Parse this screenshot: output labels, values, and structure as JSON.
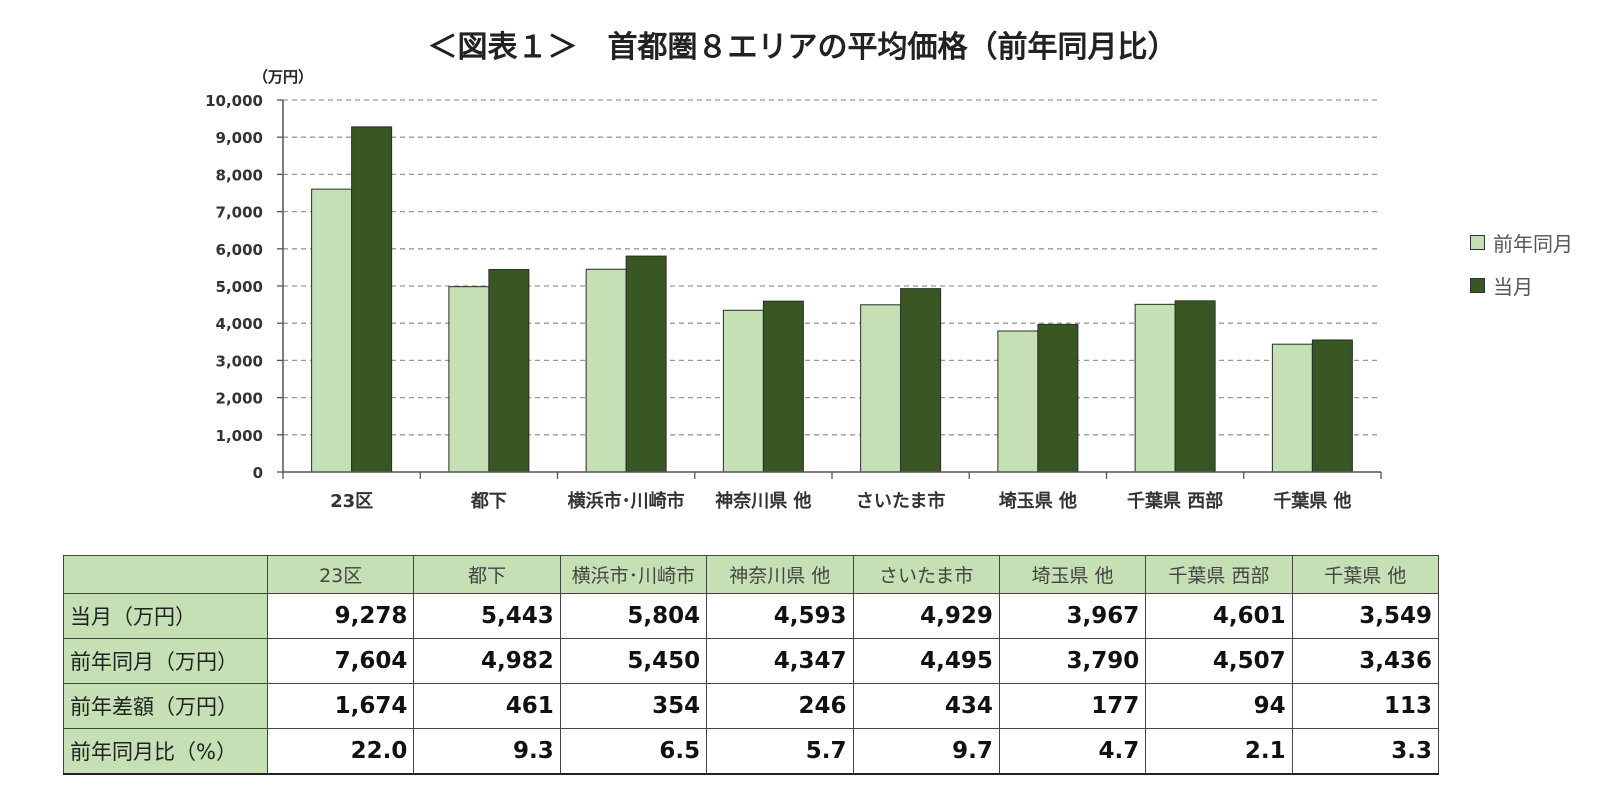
{
  "chart_data": {
    "type": "bar",
    "title": "＜図表１＞　首都圏８エリアの平均価格（前年同月比）",
    "y_unit": "（万円）",
    "ylim": [
      0,
      10000
    ],
    "y_ticks": [
      "10,000",
      "9,000",
      "8,000",
      "7,000",
      "6,000",
      "5,000",
      "4,000",
      "3,000",
      "2,000",
      "1,000",
      "0"
    ],
    "grid": true,
    "legend_position": "right",
    "categories": [
      "23区",
      "都下",
      "横浜市･川崎市",
      "神奈川県 他",
      "さいたま市",
      "埼玉県 他",
      "千葉県 西部",
      "千葉県 他"
    ],
    "series": [
      {
        "name": "前年同月",
        "color": "#c5e0b4",
        "values": [
          7604,
          4982,
          5450,
          4347,
          4495,
          3790,
          4507,
          3436
        ]
      },
      {
        "name": "当月",
        "color": "#385723",
        "values": [
          9278,
          5443,
          5804,
          4593,
          4929,
          3967,
          4601,
          3549
        ]
      }
    ]
  },
  "table": {
    "header": [
      "",
      "23区",
      "都下",
      "横浜市･川崎市",
      "神奈川県 他",
      "さいたま市",
      "埼玉県 他",
      "千葉県 西部",
      "千葉県 他"
    ],
    "rows": [
      {
        "label": "当月（万円）",
        "cells": [
          "9,278",
          "5,443",
          "5,804",
          "4,593",
          "4,929",
          "3,967",
          "4,601",
          "3,549"
        ]
      },
      {
        "label": "前年同月（万円）",
        "cells": [
          "7,604",
          "4,982",
          "5,450",
          "4,347",
          "4,495",
          "3,790",
          "4,507",
          "3,436"
        ]
      },
      {
        "label": "前年差額（万円）",
        "cells": [
          "1,674",
          "461",
          "354",
          "246",
          "434",
          "177",
          "94",
          "113"
        ]
      },
      {
        "label": "前年同月比（%）",
        "cells": [
          "22.0",
          "9.3",
          "6.5",
          "5.7",
          "9.7",
          "4.7",
          "2.1",
          "3.3"
        ]
      }
    ]
  }
}
